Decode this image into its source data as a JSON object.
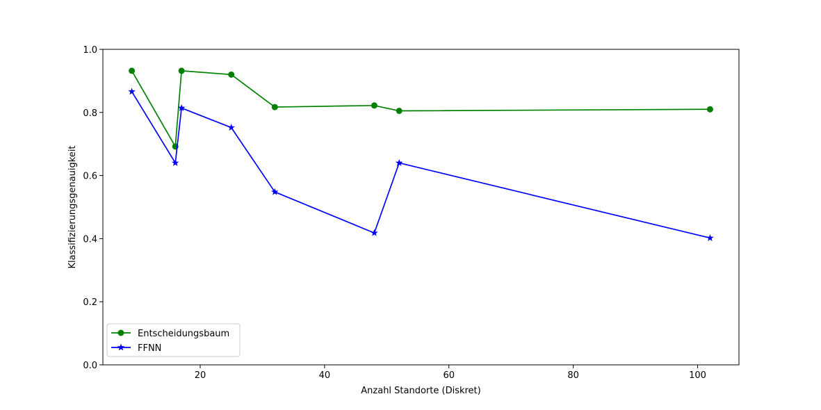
{
  "chart_data": {
    "type": "line",
    "title": "",
    "xlabel": "Anzahl Standorte (Diskret)",
    "ylabel": "Klassifizierungsgenauigkeit",
    "xlim": [
      4.35,
      106.65
    ],
    "ylim": [
      0.0,
      1.0
    ],
    "xticks": [
      20,
      40,
      60,
      80,
      100
    ],
    "yticks": [
      0.0,
      0.2,
      0.4,
      0.6,
      0.8,
      1.0
    ],
    "xtick_labels": [
      "20",
      "40",
      "60",
      "80",
      "100"
    ],
    "ytick_labels": [
      "0.0",
      "0.2",
      "0.4",
      "0.6",
      "0.8",
      "1.0"
    ],
    "grid": false,
    "legend_position": "lower-left",
    "series": [
      {
        "name": "Entscheidungsbaum",
        "color": "#008000",
        "marker": "circle",
        "x": [
          9,
          16,
          17,
          25,
          32,
          48,
          52,
          102
        ],
        "y": [
          0.932,
          0.692,
          0.932,
          0.92,
          0.817,
          0.822,
          0.805,
          0.81
        ]
      },
      {
        "name": "FFNN",
        "color": "#0000ff",
        "marker": "star",
        "x": [
          9,
          16,
          17,
          25,
          32,
          48,
          52,
          102
        ],
        "y": [
          0.866,
          0.64,
          0.814,
          0.752,
          0.548,
          0.418,
          0.64,
          0.402
        ]
      }
    ]
  }
}
